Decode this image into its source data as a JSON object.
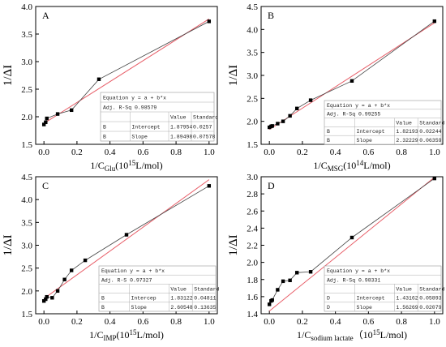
{
  "colors": {
    "data_line": "#444444",
    "fit_line": "#e8606a",
    "marker": "#000000",
    "axis": "#000000",
    "stats_border": "#999999"
  },
  "chart_data": [
    {
      "type": "scatter",
      "panel_label": "A",
      "x": [
        0.0,
        0.0105,
        0.0175,
        0.083,
        0.167,
        0.333,
        1.0
      ],
      "y": [
        1.86,
        1.9,
        1.97,
        2.05,
        2.12,
        2.68,
        3.73
      ],
      "fit": {
        "intercept": 1.87954,
        "slope": 1.89498
      },
      "title": "",
      "ylabel": "1/ΔI",
      "xlabel_main": "1/C",
      "xlabel_sub": "Glu",
      "xlabel_unit": "(10",
      "xlabel_exp": "15",
      "xlabel_tail": "L/mol)",
      "xlim": [
        -0.05,
        1.05
      ],
      "ylim": [
        1.5,
        4.0
      ],
      "xticks": [
        0.0,
        0.2,
        0.4,
        0.6,
        0.8,
        1.0
      ],
      "xtick_labels": [
        "0.0",
        "0.2",
        "0.4",
        "0.6",
        "0.8",
        "1.0"
      ],
      "yticks": [
        1.5,
        2.0,
        2.5,
        3.0,
        3.5,
        4.0
      ],
      "ytick_labels": [
        "1.5",
        "2.0",
        "2.5",
        "3.0",
        "3.5",
        "4.0"
      ],
      "stats": {
        "equation": "Equation  y = a + b*x",
        "adjr": "Adj. R-Sq   0.98579",
        "col_value": "Value",
        "col_std": "Standard",
        "rows": [
          {
            "group": "B",
            "param": "Intercept",
            "value": "1.87954",
            "std": "0.0257"
          },
          {
            "group": "B",
            "param": "Slope",
            "value": "1.89498",
            "std": "0.07578"
          }
        ]
      }
    },
    {
      "type": "scatter",
      "panel_label": "B",
      "x": [
        0.0,
        0.0105,
        0.0175,
        0.05,
        0.083,
        0.125,
        0.167,
        0.25,
        0.5,
        1.0
      ],
      "y": [
        1.87,
        1.89,
        1.9,
        1.95,
        2.0,
        2.12,
        2.28,
        2.46,
        2.88,
        4.18
      ],
      "fit": {
        "intercept": 1.82193,
        "slope": 2.32229
      },
      "title": "",
      "ylabel": "1/ΔI",
      "xlabel_main": "1/C",
      "xlabel_sub": "MSG",
      "xlabel_unit": "(10",
      "xlabel_exp": "14",
      "xlabel_tail": "L/mol)",
      "xlim": [
        -0.05,
        1.05
      ],
      "ylim": [
        1.5,
        4.5
      ],
      "xticks": [
        0.0,
        0.2,
        0.4,
        0.6,
        0.8,
        1.0
      ],
      "xtick_labels": [
        "0.0",
        "0.2",
        "0.4",
        "0.6",
        "0.8",
        "1.0"
      ],
      "yticks": [
        1.5,
        2.0,
        2.5,
        3.0,
        3.5,
        4.0,
        4.5
      ],
      "ytick_labels": [
        "1.5",
        "2.0",
        "2.5",
        "3.0",
        "3.5",
        "4.0",
        "4.5"
      ],
      "stats": {
        "equation": "Equation  y = a + b*x",
        "adjr": "Adj. R-Sq   0.99255",
        "col_value": "Value",
        "col_std": "Standard",
        "rows": [
          {
            "group": "B",
            "param": "Intercept",
            "value": "1.82193",
            "std": "0.02244"
          },
          {
            "group": "B",
            "param": "Slope",
            "value": "2.32229",
            "std": "0.06359"
          }
        ]
      }
    },
    {
      "type": "scatter",
      "panel_label": "C",
      "x": [
        0.0,
        0.0105,
        0.0175,
        0.05,
        0.083,
        0.125,
        0.167,
        0.25,
        0.5,
        1.0
      ],
      "y": [
        1.78,
        1.82,
        1.87,
        1.85,
        2.0,
        2.25,
        2.45,
        2.67,
        3.23,
        4.3
      ],
      "fit": {
        "intercept": 1.83122,
        "slope": 2.60548
      },
      "title": "",
      "ylabel": "1/ΔI",
      "xlabel_main": "1/C",
      "xlabel_sub": "IMP",
      "xlabel_unit": "(10",
      "xlabel_exp": "15",
      "xlabel_tail": "L/mol)",
      "xlim": [
        -0.05,
        1.05
      ],
      "ylim": [
        1.5,
        4.5
      ],
      "xticks": [
        0.0,
        0.2,
        0.4,
        0.6,
        0.8,
        1.0
      ],
      "xtick_labels": [
        "0.0",
        "0.2",
        "0.4",
        "0.6",
        "0.8",
        "1.0"
      ],
      "yticks": [
        1.5,
        2.0,
        2.5,
        3.0,
        3.5,
        4.0,
        4.5
      ],
      "ytick_labels": [
        "1.5",
        "2.0",
        "2.5",
        "3.0",
        "3.5",
        "4.0",
        "4.5"
      ],
      "stats": {
        "equation": "Equation  y = a + b*x",
        "adjr": "Adj. R-S   0.97327",
        "col_value": "Value",
        "col_std": "Standard",
        "rows": [
          {
            "group": "B",
            "param": "Intercep",
            "value": "1.83122",
            "std": "0.04811"
          },
          {
            "group": "B",
            "param": "Slope",
            "value": "2.60548",
            "std": "0.13635"
          }
        ]
      }
    },
    {
      "type": "scatter",
      "panel_label": "D",
      "x": [
        0.0,
        0.0105,
        0.0175,
        0.05,
        0.083,
        0.125,
        0.167,
        0.25,
        0.5,
        1.0
      ],
      "y": [
        1.51,
        1.55,
        1.56,
        1.68,
        1.78,
        1.79,
        1.88,
        1.89,
        2.29,
        2.98
      ],
      "fit": {
        "intercept": 1.43162,
        "slope": 1.56269
      },
      "title": "",
      "ylabel": "1/ΔI",
      "xlabel_main": "1/C",
      "xlabel_sub": "sodium lactate",
      "xlabel_unit": "（10",
      "xlabel_exp": "15",
      "xlabel_tail": "L/mol)",
      "xlim": [
        -0.05,
        1.05
      ],
      "ylim": [
        1.4,
        3.0
      ],
      "xticks": [
        0.0,
        0.2,
        0.4,
        0.6,
        0.8,
        1.0
      ],
      "xtick_labels": [
        "0.0",
        "0.2",
        "0.4",
        "0.6",
        "0.8",
        "1.0"
      ],
      "yticks": [
        1.4,
        1.6,
        1.8,
        2.0,
        2.2,
        2.4,
        2.6,
        2.8,
        3.0
      ],
      "ytick_labels": [
        "1.4",
        "1.6",
        "1.8",
        "2.0",
        "2.2",
        "2.4",
        "2.6",
        "2.8",
        "3.0"
      ],
      "stats": {
        "equation": "Equation  y = a + b*x",
        "adjr": "Adj. R-Sq   0.98331",
        "col_value": "Value",
        "col_std": "Standard",
        "rows": [
          {
            "group": "D",
            "param": "Intercept",
            "value": "1.43162",
            "std": "0.05893"
          },
          {
            "group": "D",
            "param": "Slope",
            "value": "1.56269",
            "std": "0.02079"
          }
        ]
      }
    }
  ]
}
